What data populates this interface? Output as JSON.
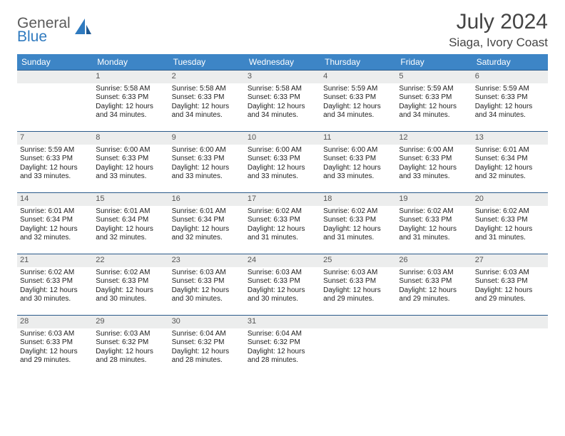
{
  "brand": {
    "general": "General",
    "blue": "Blue"
  },
  "title": {
    "month": "July 2024",
    "location": "Siaga, Ivory Coast"
  },
  "colors": {
    "header_bg": "#3d85c6",
    "header_text": "#ffffff",
    "daynum_bg": "#eceded",
    "row_border": "#2a5a8a",
    "text": "#333333",
    "logo_gray": "#5a5a5a",
    "logo_blue": "#2f7abf"
  },
  "weekdays": [
    "Sunday",
    "Monday",
    "Tuesday",
    "Wednesday",
    "Thursday",
    "Friday",
    "Saturday"
  ],
  "weeks": [
    [
      {
        "num": "",
        "lines": []
      },
      {
        "num": "1",
        "lines": [
          "Sunrise: 5:58 AM",
          "Sunset: 6:33 PM",
          "Daylight: 12 hours",
          "and 34 minutes."
        ]
      },
      {
        "num": "2",
        "lines": [
          "Sunrise: 5:58 AM",
          "Sunset: 6:33 PM",
          "Daylight: 12 hours",
          "and 34 minutes."
        ]
      },
      {
        "num": "3",
        "lines": [
          "Sunrise: 5:58 AM",
          "Sunset: 6:33 PM",
          "Daylight: 12 hours",
          "and 34 minutes."
        ]
      },
      {
        "num": "4",
        "lines": [
          "Sunrise: 5:59 AM",
          "Sunset: 6:33 PM",
          "Daylight: 12 hours",
          "and 34 minutes."
        ]
      },
      {
        "num": "5",
        "lines": [
          "Sunrise: 5:59 AM",
          "Sunset: 6:33 PM",
          "Daylight: 12 hours",
          "and 34 minutes."
        ]
      },
      {
        "num": "6",
        "lines": [
          "Sunrise: 5:59 AM",
          "Sunset: 6:33 PM",
          "Daylight: 12 hours",
          "and 34 minutes."
        ]
      }
    ],
    [
      {
        "num": "7",
        "lines": [
          "Sunrise: 5:59 AM",
          "Sunset: 6:33 PM",
          "Daylight: 12 hours",
          "and 33 minutes."
        ]
      },
      {
        "num": "8",
        "lines": [
          "Sunrise: 6:00 AM",
          "Sunset: 6:33 PM",
          "Daylight: 12 hours",
          "and 33 minutes."
        ]
      },
      {
        "num": "9",
        "lines": [
          "Sunrise: 6:00 AM",
          "Sunset: 6:33 PM",
          "Daylight: 12 hours",
          "and 33 minutes."
        ]
      },
      {
        "num": "10",
        "lines": [
          "Sunrise: 6:00 AM",
          "Sunset: 6:33 PM",
          "Daylight: 12 hours",
          "and 33 minutes."
        ]
      },
      {
        "num": "11",
        "lines": [
          "Sunrise: 6:00 AM",
          "Sunset: 6:33 PM",
          "Daylight: 12 hours",
          "and 33 minutes."
        ]
      },
      {
        "num": "12",
        "lines": [
          "Sunrise: 6:00 AM",
          "Sunset: 6:33 PM",
          "Daylight: 12 hours",
          "and 33 minutes."
        ]
      },
      {
        "num": "13",
        "lines": [
          "Sunrise: 6:01 AM",
          "Sunset: 6:34 PM",
          "Daylight: 12 hours",
          "and 32 minutes."
        ]
      }
    ],
    [
      {
        "num": "14",
        "lines": [
          "Sunrise: 6:01 AM",
          "Sunset: 6:34 PM",
          "Daylight: 12 hours",
          "and 32 minutes."
        ]
      },
      {
        "num": "15",
        "lines": [
          "Sunrise: 6:01 AM",
          "Sunset: 6:34 PM",
          "Daylight: 12 hours",
          "and 32 minutes."
        ]
      },
      {
        "num": "16",
        "lines": [
          "Sunrise: 6:01 AM",
          "Sunset: 6:34 PM",
          "Daylight: 12 hours",
          "and 32 minutes."
        ]
      },
      {
        "num": "17",
        "lines": [
          "Sunrise: 6:02 AM",
          "Sunset: 6:33 PM",
          "Daylight: 12 hours",
          "and 31 minutes."
        ]
      },
      {
        "num": "18",
        "lines": [
          "Sunrise: 6:02 AM",
          "Sunset: 6:33 PM",
          "Daylight: 12 hours",
          "and 31 minutes."
        ]
      },
      {
        "num": "19",
        "lines": [
          "Sunrise: 6:02 AM",
          "Sunset: 6:33 PM",
          "Daylight: 12 hours",
          "and 31 minutes."
        ]
      },
      {
        "num": "20",
        "lines": [
          "Sunrise: 6:02 AM",
          "Sunset: 6:33 PM",
          "Daylight: 12 hours",
          "and 31 minutes."
        ]
      }
    ],
    [
      {
        "num": "21",
        "lines": [
          "Sunrise: 6:02 AM",
          "Sunset: 6:33 PM",
          "Daylight: 12 hours",
          "and 30 minutes."
        ]
      },
      {
        "num": "22",
        "lines": [
          "Sunrise: 6:02 AM",
          "Sunset: 6:33 PM",
          "Daylight: 12 hours",
          "and 30 minutes."
        ]
      },
      {
        "num": "23",
        "lines": [
          "Sunrise: 6:03 AM",
          "Sunset: 6:33 PM",
          "Daylight: 12 hours",
          "and 30 minutes."
        ]
      },
      {
        "num": "24",
        "lines": [
          "Sunrise: 6:03 AM",
          "Sunset: 6:33 PM",
          "Daylight: 12 hours",
          "and 30 minutes."
        ]
      },
      {
        "num": "25",
        "lines": [
          "Sunrise: 6:03 AM",
          "Sunset: 6:33 PM",
          "Daylight: 12 hours",
          "and 29 minutes."
        ]
      },
      {
        "num": "26",
        "lines": [
          "Sunrise: 6:03 AM",
          "Sunset: 6:33 PM",
          "Daylight: 12 hours",
          "and 29 minutes."
        ]
      },
      {
        "num": "27",
        "lines": [
          "Sunrise: 6:03 AM",
          "Sunset: 6:33 PM",
          "Daylight: 12 hours",
          "and 29 minutes."
        ]
      }
    ],
    [
      {
        "num": "28",
        "lines": [
          "Sunrise: 6:03 AM",
          "Sunset: 6:33 PM",
          "Daylight: 12 hours",
          "and 29 minutes."
        ]
      },
      {
        "num": "29",
        "lines": [
          "Sunrise: 6:03 AM",
          "Sunset: 6:32 PM",
          "Daylight: 12 hours",
          "and 28 minutes."
        ]
      },
      {
        "num": "30",
        "lines": [
          "Sunrise: 6:04 AM",
          "Sunset: 6:32 PM",
          "Daylight: 12 hours",
          "and 28 minutes."
        ]
      },
      {
        "num": "31",
        "lines": [
          "Sunrise: 6:04 AM",
          "Sunset: 6:32 PM",
          "Daylight: 12 hours",
          "and 28 minutes."
        ]
      },
      {
        "num": "",
        "lines": []
      },
      {
        "num": "",
        "lines": []
      },
      {
        "num": "",
        "lines": []
      }
    ]
  ]
}
